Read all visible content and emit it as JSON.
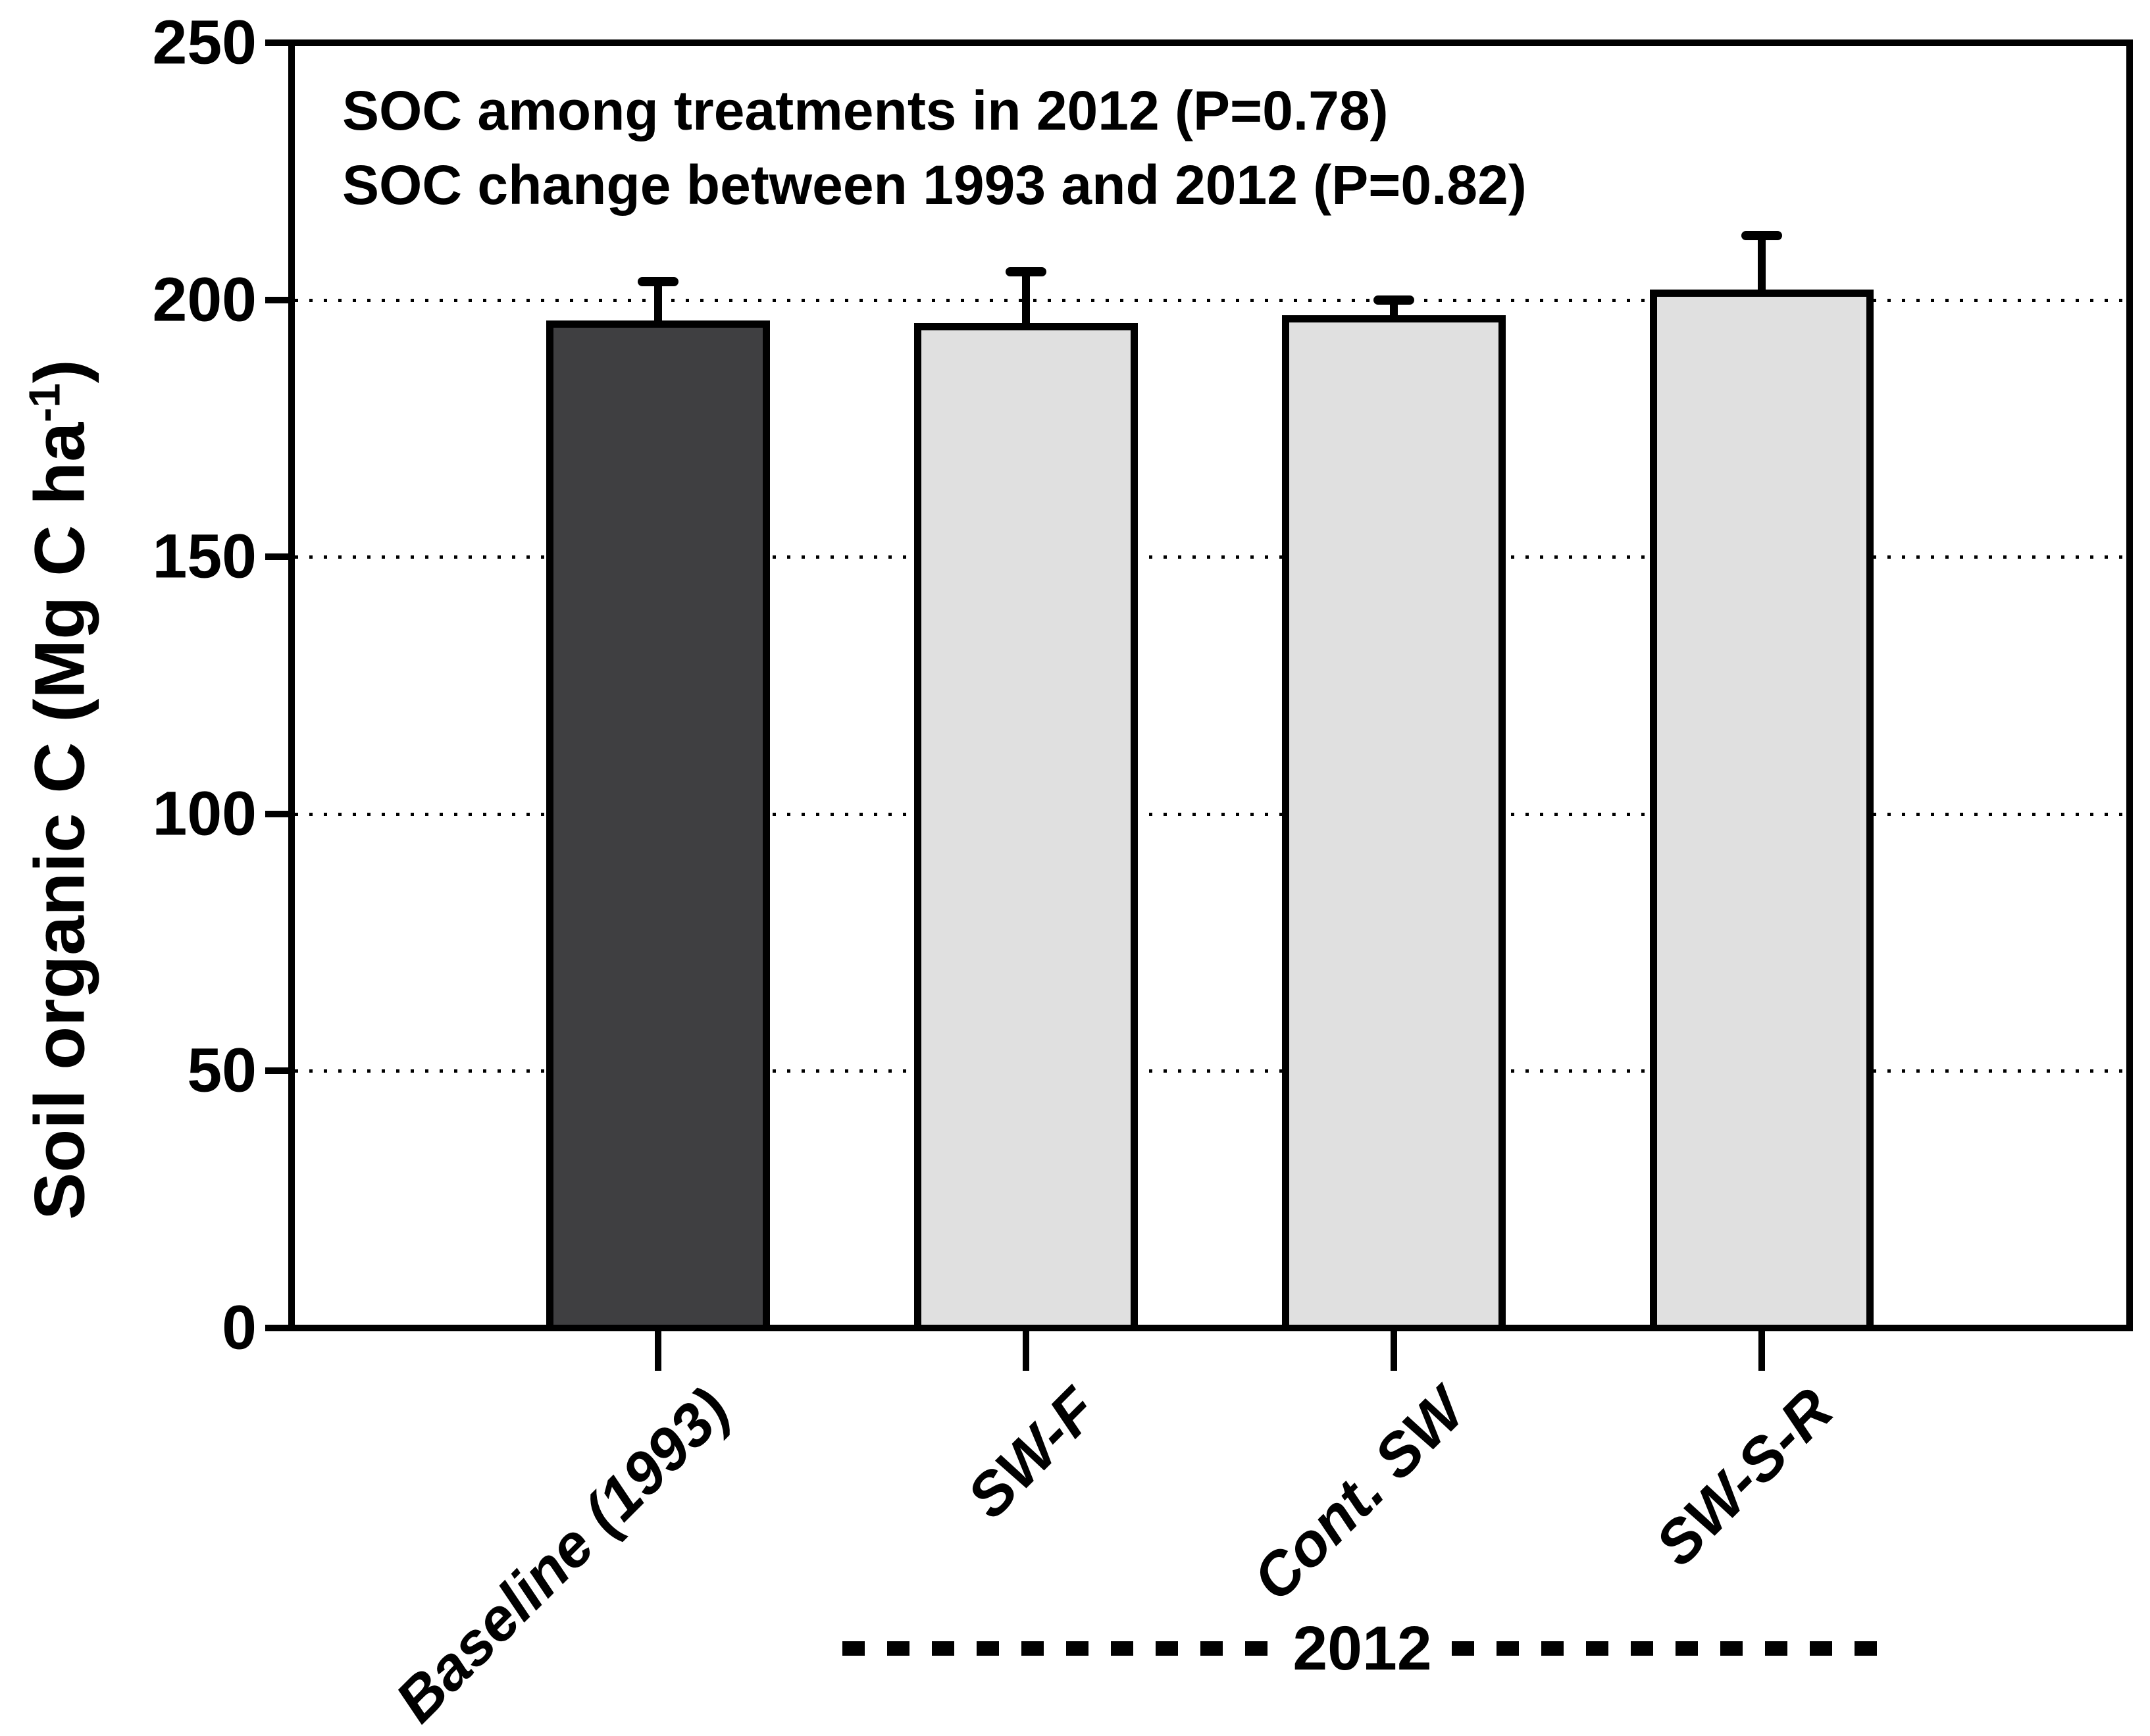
{
  "chart_data": {
    "type": "bar",
    "title": "",
    "ylabel_main": "Soil organic C (Mg C ha",
    "ylabel_sup": "-1",
    "ylabel_end": ")",
    "ylim": [
      0,
      250
    ],
    "yticks": [
      0,
      50,
      100,
      150,
      200,
      250
    ],
    "gridline_values": [
      50,
      100,
      150,
      200
    ],
    "grid_style": "dotted",
    "legend": "none",
    "categories": [
      "Baseline (1993)",
      "SW-F",
      "Cont. SW",
      "SW-S-R"
    ],
    "series": [
      {
        "name": "Soil organic C",
        "values": [
          196,
          195.5,
          197,
          202
        ],
        "errors_plus": [
          7.5,
          10,
          3,
          10.5
        ]
      }
    ],
    "bar_fill_colors": [
      "#3f3f41",
      "#e0e0e0",
      "#e0e0e0",
      "#e0e0e0"
    ],
    "bar_border_color": "#000000",
    "annotations": [
      "SOC among treatments in 2012 (P=0.78)",
      "SOC change between 1993 and 2012 (P=0.82)"
    ],
    "group_label": "2012",
    "group_span_categories": [
      "SW-F",
      "Cont. SW",
      "SW-S-R"
    ]
  }
}
